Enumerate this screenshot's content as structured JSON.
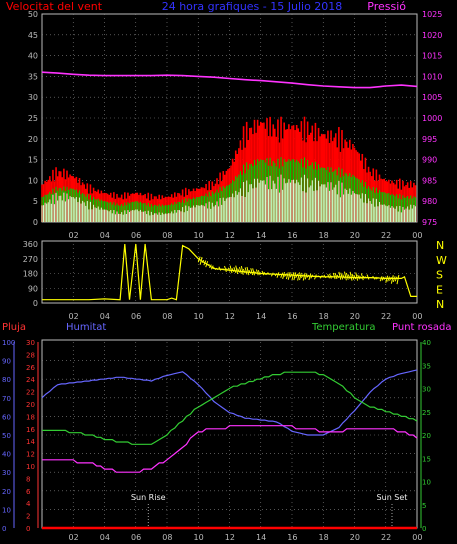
{
  "header": {
    "left": "Velocitat del vent",
    "center": "24 hora grafiques - 15 Julio 2018",
    "right": "Pressió"
  },
  "panel3_labels": {
    "rain": "Pluja",
    "humidity": "Humitat",
    "temperature": "Temperatura",
    "dewpoint": "Punt rosada",
    "sunrise": "Sun Rise",
    "sunset": "Sun Set"
  },
  "colors": {
    "wind_gust": "#ff0000",
    "wind_avg": "#00cc00",
    "wind_low": "#ccffcc",
    "pressure": "#ff33ff",
    "direction": "#ffff00",
    "humidity": "#6666ff",
    "temperature": "#33cc33",
    "dewpoint": "#ff33ff",
    "rain": "#ff0000",
    "pluja_label": "#ff3333",
    "humitat_label": "#6666ff",
    "temp_label": "#33cc33",
    "punt_label": "#ff33ff",
    "axis_grey": "#bbbbbb",
    "axis_yellow": "#ffff00"
  },
  "chart_data": [
    {
      "type": "line",
      "title": "24 hora grafiques - 15 Julio 2018",
      "x_ticks": [
        "02",
        "04",
        "06",
        "08",
        "10",
        "12",
        "14",
        "16",
        "18",
        "20",
        "22",
        "00"
      ],
      "hours": [
        0,
        1,
        2,
        3,
        4,
        5,
        6,
        7,
        8,
        9,
        10,
        11,
        12,
        13,
        14,
        15,
        16,
        17,
        18,
        19,
        20,
        21,
        22,
        23,
        24
      ],
      "left_axis": {
        "label": "Velocitat del vent",
        "ylim": [
          0,
          50
        ],
        "ticks": [
          0,
          5,
          10,
          15,
          20,
          25,
          30,
          35,
          40,
          45,
          50
        ]
      },
      "right_axis": {
        "label": "Pressió",
        "ylim": [
          975,
          1025
        ],
        "ticks": [
          975,
          980,
          985,
          990,
          995,
          1000,
          1005,
          1010,
          1015,
          1020,
          1025
        ]
      },
      "series": [
        {
          "name": "gust",
          "axis": "left",
          "values": [
            9,
            12,
            11,
            8,
            7,
            6,
            7,
            6,
            6,
            7,
            8,
            9,
            13,
            21,
            24,
            22,
            23,
            22,
            21,
            20,
            18,
            12,
            10,
            9,
            9
          ]
        },
        {
          "name": "avg",
          "axis": "left",
          "values": [
            6,
            8,
            8,
            6,
            5,
            4,
            5,
            4,
            4,
            5,
            6,
            7,
            9,
            13,
            15,
            14,
            15,
            14,
            13,
            12,
            11,
            8,
            7,
            6,
            6
          ]
        },
        {
          "name": "low",
          "axis": "left",
          "values": [
            4,
            6,
            6,
            4,
            3,
            2,
            3,
            2,
            2,
            3,
            4,
            4,
            6,
            8,
            10,
            9,
            10,
            9,
            9,
            8,
            7,
            5,
            4,
            3,
            4
          ]
        },
        {
          "name": "pressure",
          "axis": "right",
          "values": [
            1011,
            1010.8,
            1010.5,
            1010.3,
            1010.2,
            1010.2,
            1010.2,
            1010.2,
            1010.3,
            1010.2,
            1010,
            1009.8,
            1009.5,
            1009.2,
            1009,
            1008.7,
            1008.4,
            1008,
            1007.7,
            1007.5,
            1007.3,
            1007.3,
            1007.7,
            1007.9,
            1007.6
          ]
        }
      ]
    },
    {
      "type": "line",
      "title": "",
      "x_ticks": [
        "02",
        "04",
        "06",
        "08",
        "10",
        "12",
        "14",
        "16",
        "18",
        "20",
        "22",
        "00"
      ],
      "hours": [
        0,
        1,
        2,
        3,
        4,
        5,
        5.3,
        5.6,
        6,
        6.3,
        6.6,
        7,
        7.4,
        8,
        8.3,
        8.6,
        9,
        9.4,
        10,
        11,
        12,
        13,
        14,
        15,
        16,
        17,
        18,
        19,
        20,
        21,
        22,
        23,
        23.2,
        23.6,
        24
      ],
      "right_axis_labels": [
        "N",
        "W",
        "S",
        "E",
        "N"
      ],
      "left_axis": {
        "ylim": [
          0,
          360
        ],
        "ticks": [
          0,
          90,
          180,
          270,
          360
        ]
      },
      "series": [
        {
          "name": "direction",
          "values": [
            20,
            20,
            20,
            20,
            25,
            20,
            360,
            20,
            360,
            20,
            360,
            20,
            20,
            20,
            30,
            20,
            350,
            330,
            270,
            210,
            200,
            190,
            180,
            175,
            170,
            165,
            160,
            160,
            155,
            155,
            150,
            150,
            160,
            40,
            40
          ]
        }
      ]
    },
    {
      "type": "line",
      "title": "",
      "x_ticks": [
        "02",
        "04",
        "06",
        "08",
        "10",
        "12",
        "14",
        "16",
        "18",
        "20",
        "22",
        "00"
      ],
      "hours": [
        0,
        1,
        2,
        3,
        4,
        5,
        6,
        7,
        8,
        9,
        10,
        11,
        12,
        13,
        14,
        15,
        16,
        17,
        18,
        19,
        20,
        21,
        22,
        23,
        24
      ],
      "axes": {
        "rain": {
          "label": "Pluja",
          "ylim": [
            0,
            30
          ],
          "ticks": [
            0,
            2,
            4,
            6,
            8,
            10,
            12,
            14,
            16,
            18,
            20,
            22,
            24,
            26,
            28,
            30
          ]
        },
        "humidity": {
          "label": "Humitat",
          "ylim": [
            0,
            100
          ],
          "ticks": [
            0,
            10,
            20,
            30,
            40,
            50,
            60,
            70,
            80,
            90,
            100
          ]
        },
        "temperature": {
          "label": "Temperatura",
          "ylim": [
            0,
            40
          ],
          "ticks": [
            0,
            5,
            10,
            15,
            20,
            25,
            30,
            35,
            40
          ]
        },
        "dewpoint": {
          "label": "Punt rosada",
          "ylim": [
            0,
            30
          ],
          "ticks": [
            0,
            2,
            4,
            6,
            8,
            10,
            12,
            14,
            16,
            18,
            20,
            22,
            24,
            26,
            28,
            30
          ]
        }
      },
      "series": [
        {
          "name": "Humitat",
          "axis": "humidity",
          "values": [
            70,
            77,
            78,
            79,
            80,
            81,
            80,
            79,
            82,
            84,
            77,
            68,
            62,
            59,
            58,
            57,
            52,
            50,
            50,
            54,
            63,
            73,
            80,
            83,
            85
          ]
        },
        {
          "name": "Temperatura",
          "axis": "temperature",
          "values": [
            21,
            21,
            20.5,
            20,
            19,
            18.5,
            18,
            18,
            20,
            23,
            26,
            28,
            30,
            31,
            32,
            33,
            33.5,
            33.5,
            33,
            31,
            28,
            26,
            25,
            24,
            23
          ]
        },
        {
          "name": "Punt rosada",
          "axis": "dewpoint",
          "values": [
            11,
            11,
            10.8,
            10.5,
            9.5,
            9,
            9,
            9.5,
            11,
            13,
            15.5,
            16,
            16.3,
            16.5,
            16.5,
            16.5,
            16.3,
            16,
            15.5,
            15.5,
            16,
            16.2,
            16,
            15.5,
            14.5
          ]
        },
        {
          "name": "Pluja",
          "axis": "rain",
          "values": [
            0,
            0,
            0,
            0,
            0,
            0,
            0,
            0,
            0,
            0,
            0,
            0,
            0,
            0,
            0,
            0,
            0,
            0,
            0,
            0,
            0,
            0,
            0,
            0,
            0
          ]
        }
      ],
      "markers": [
        {
          "label": "Sun Rise",
          "hour": 6.8
        },
        {
          "label": "Sun Set",
          "hour": 22.4
        }
      ]
    }
  ]
}
